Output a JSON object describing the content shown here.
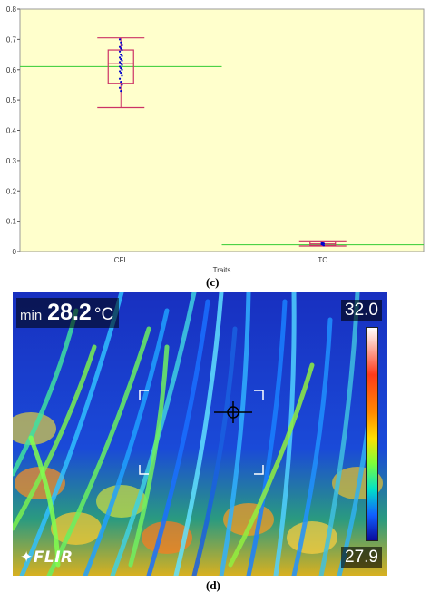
{
  "chart_data": {
    "type": "box",
    "xlabel": "Traits",
    "ylabel": "",
    "ylim": [
      0,
      0.8
    ],
    "yticks": [
      0,
      0.1,
      0.2,
      0.3,
      0.4,
      0.5,
      0.6,
      0.7,
      0.8
    ],
    "categories": [
      "CFL",
      "TC"
    ],
    "boxes": [
      {
        "category": "CFL",
        "min": 0.475,
        "q1": 0.555,
        "median": 0.62,
        "q3": 0.665,
        "max": 0.705,
        "mean": 0.61
      },
      {
        "category": "TC",
        "min": 0.018,
        "q1": 0.02,
        "median": 0.025,
        "q3": 0.032,
        "max": 0.035,
        "mean": 0.022
      }
    ],
    "points": [
      {
        "category": "CFL",
        "values": [
          0.7,
          0.69,
          0.68,
          0.675,
          0.67,
          0.665,
          0.66,
          0.65,
          0.645,
          0.64,
          0.635,
          0.63,
          0.625,
          0.62,
          0.615,
          0.61,
          0.605,
          0.6,
          0.595,
          0.59,
          0.58,
          0.57,
          0.56,
          0.55,
          0.54,
          0.53
        ]
      },
      {
        "category": "TC",
        "values": [
          0.03,
          0.028,
          0.026,
          0.024,
          0.022,
          0.02
        ]
      }
    ],
    "colors": {
      "plot_bg": "#ffffcc",
      "box": "#cc3366",
      "mean_line": "#33cc33",
      "points": "#0000cc",
      "axis": "#555555"
    }
  },
  "panels": {
    "c": "(c)",
    "d": "(d)"
  },
  "thermal": {
    "min_label": "min",
    "min_value": "28.2",
    "unit": "°C",
    "scale_max": "32.0",
    "scale_min": "27.9",
    "logo": "FLIR"
  }
}
